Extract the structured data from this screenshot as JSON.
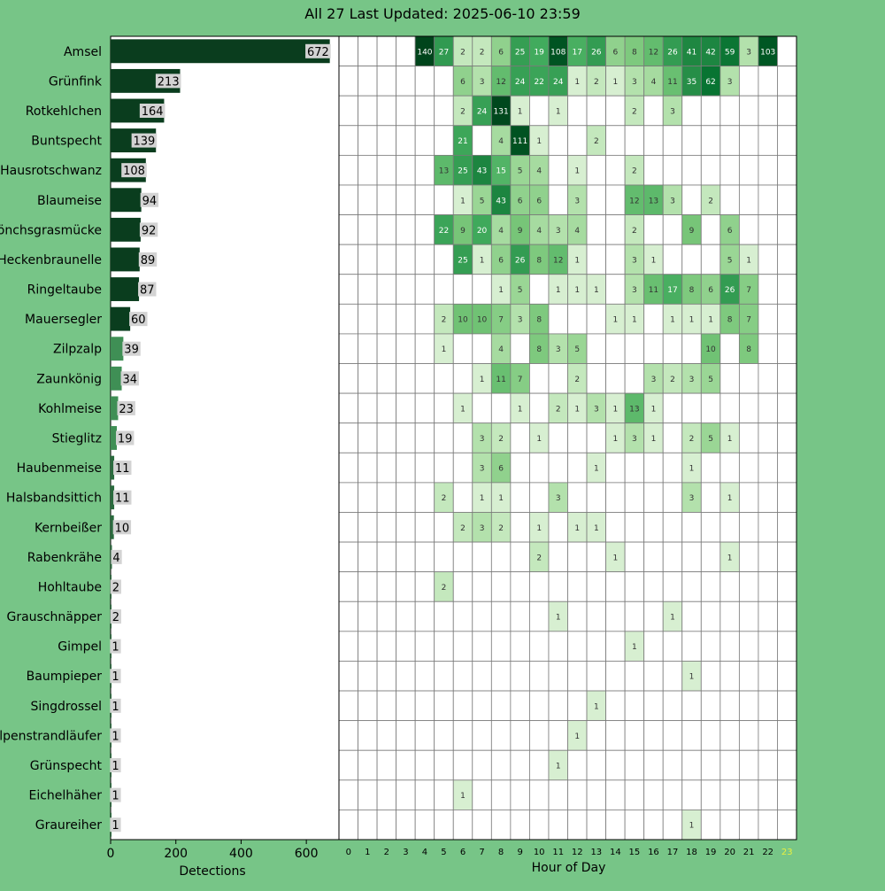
{
  "title": "All 27 Last Updated: 2025-06-10 23:59",
  "colors": {
    "background": "#77c587",
    "bar": "#0a3d1e",
    "grid": "#7a7a7a",
    "highlight_hour": "#e8f040",
    "label_box": "#d3d3d3"
  },
  "chart_data": [
    {
      "type": "bar",
      "orientation": "horizontal",
      "xlabel": "Detections",
      "xlim": [
        0,
        700
      ],
      "xticks": [
        0,
        200,
        400,
        600
      ],
      "categories": [
        "Amsel",
        "Grünfink",
        "Rotkehlchen",
        "Buntspecht",
        "Hausrotschwanz",
        "Blaumeise",
        "Mönchsgrasmücke",
        "Heckenbraunelle",
        "Ringeltaube",
        "Mauersegler",
        "Zilpzalp",
        "Zaunkönig",
        "Kohlmeise",
        "Stieglitz",
        "Haubenmeise",
        "Halsbandsittich",
        "Kernbeißer",
        "Rabenkrähe",
        "Hohltaube",
        "Grauschnäpper",
        "Gimpel",
        "Baumpieper",
        "Singdrossel",
        "Alpenstrandläufer",
        "Grünspecht",
        "Eichelhäher",
        "Graureiher"
      ],
      "values": [
        672,
        213,
        164,
        139,
        108,
        94,
        92,
        89,
        87,
        60,
        39,
        34,
        23,
        19,
        11,
        11,
        10,
        4,
        2,
        2,
        1,
        1,
        1,
        1,
        1,
        1,
        1
      ]
    },
    {
      "type": "heatmap",
      "xlabel": "Hour of Day",
      "hours": [
        "0",
        "1",
        "2",
        "3",
        "4",
        "5",
        "6",
        "7",
        "8",
        "9",
        "10",
        "11",
        "12",
        "13",
        "14",
        "15",
        "16",
        "17",
        "18",
        "19",
        "20",
        "21",
        "22",
        "23"
      ],
      "highlight_hour": "23",
      "rows": [
        "Amsel",
        "Grünfink",
        "Rotkehlchen",
        "Buntspecht",
        "Hausrotschwanz",
        "Blaumeise",
        "Mönchsgrasmücke",
        "Heckenbraunelle",
        "Ringeltaube",
        "Mauersegler",
        "Zilpzalp",
        "Zaunkönig",
        "Kohlmeise",
        "Stieglitz",
        "Haubenmeise",
        "Halsbandsittich",
        "Kernbeißer",
        "Rabenkrähe",
        "Hohltaube",
        "Grauschnäpper",
        "Gimpel",
        "Baumpieper",
        "Singdrossel",
        "Alpenstrandläufer",
        "Grünspecht",
        "Eichelhäher",
        "Graureiher"
      ],
      "values": [
        [
          0,
          0,
          0,
          0,
          140,
          27,
          2,
          2,
          6,
          25,
          19,
          108,
          17,
          26,
          6,
          8,
          12,
          26,
          41,
          42,
          59,
          3,
          103,
          0
        ],
        [
          0,
          0,
          0,
          0,
          0,
          0,
          6,
          3,
          12,
          24,
          22,
          24,
          1,
          2,
          1,
          3,
          4,
          11,
          35,
          62,
          3,
          0,
          0,
          0
        ],
        [
          0,
          0,
          0,
          0,
          0,
          0,
          2,
          24,
          131,
          1,
          0,
          1,
          0,
          0,
          0,
          2,
          0,
          3,
          0,
          0,
          0,
          0,
          0,
          0
        ],
        [
          0,
          0,
          0,
          0,
          0,
          0,
          21,
          0,
          4,
          111,
          1,
          0,
          0,
          2,
          0,
          0,
          0,
          0,
          0,
          0,
          0,
          0,
          0,
          0
        ],
        [
          0,
          0,
          0,
          0,
          0,
          13,
          25,
          43,
          15,
          5,
          4,
          0,
          1,
          0,
          0,
          2,
          0,
          0,
          0,
          0,
          0,
          0,
          0,
          0
        ],
        [
          0,
          0,
          0,
          0,
          0,
          0,
          1,
          5,
          43,
          6,
          6,
          0,
          3,
          0,
          0,
          12,
          13,
          3,
          0,
          2,
          0,
          0,
          0,
          0
        ],
        [
          0,
          0,
          0,
          0,
          0,
          22,
          9,
          20,
          4,
          9,
          4,
          3,
          4,
          0,
          0,
          2,
          0,
          0,
          9,
          0,
          6,
          0,
          0,
          0
        ],
        [
          0,
          0,
          0,
          0,
          0,
          0,
          25,
          1,
          6,
          26,
          8,
          12,
          1,
          0,
          0,
          3,
          1,
          0,
          0,
          0,
          5,
          1,
          0,
          0
        ],
        [
          0,
          0,
          0,
          0,
          0,
          0,
          0,
          0,
          1,
          5,
          0,
          1,
          1,
          1,
          0,
          3,
          11,
          17,
          8,
          6,
          26,
          7,
          0,
          0
        ],
        [
          0,
          0,
          0,
          0,
          0,
          2,
          10,
          10,
          7,
          3,
          8,
          0,
          0,
          0,
          1,
          1,
          0,
          1,
          1,
          1,
          8,
          7,
          0,
          0
        ],
        [
          0,
          0,
          0,
          0,
          0,
          1,
          0,
          0,
          4,
          0,
          8,
          3,
          5,
          0,
          0,
          0,
          0,
          0,
          0,
          10,
          0,
          8,
          0,
          0
        ],
        [
          0,
          0,
          0,
          0,
          0,
          0,
          0,
          1,
          11,
          7,
          0,
          0,
          2,
          0,
          0,
          0,
          3,
          2,
          3,
          5,
          0,
          0,
          0,
          0
        ],
        [
          0,
          0,
          0,
          0,
          0,
          0,
          1,
          0,
          0,
          1,
          0,
          2,
          1,
          3,
          1,
          13,
          1,
          0,
          0,
          0,
          0,
          0,
          0,
          0
        ],
        [
          0,
          0,
          0,
          0,
          0,
          0,
          0,
          3,
          2,
          0,
          1,
          0,
          0,
          0,
          1,
          3,
          1,
          0,
          2,
          5,
          1,
          0,
          0,
          0
        ],
        [
          0,
          0,
          0,
          0,
          0,
          0,
          0,
          3,
          6,
          0,
          0,
          0,
          0,
          1,
          0,
          0,
          0,
          0,
          1,
          0,
          0,
          0,
          0,
          0
        ],
        [
          0,
          0,
          0,
          0,
          0,
          2,
          0,
          1,
          1,
          0,
          0,
          3,
          0,
          0,
          0,
          0,
          0,
          0,
          3,
          0,
          1,
          0,
          0,
          0
        ],
        [
          0,
          0,
          0,
          0,
          0,
          0,
          2,
          3,
          2,
          0,
          1,
          0,
          1,
          1,
          0,
          0,
          0,
          0,
          0,
          0,
          0,
          0,
          0,
          0
        ],
        [
          0,
          0,
          0,
          0,
          0,
          0,
          0,
          0,
          0,
          0,
          2,
          0,
          0,
          0,
          1,
          0,
          0,
          0,
          0,
          0,
          1,
          0,
          0,
          0
        ],
        [
          0,
          0,
          0,
          0,
          0,
          2,
          0,
          0,
          0,
          0,
          0,
          0,
          0,
          0,
          0,
          0,
          0,
          0,
          0,
          0,
          0,
          0,
          0,
          0
        ],
        [
          0,
          0,
          0,
          0,
          0,
          0,
          0,
          0,
          0,
          0,
          0,
          1,
          0,
          0,
          0,
          0,
          0,
          1,
          0,
          0,
          0,
          0,
          0,
          0
        ],
        [
          0,
          0,
          0,
          0,
          0,
          0,
          0,
          0,
          0,
          0,
          0,
          0,
          0,
          0,
          0,
          1,
          0,
          0,
          0,
          0,
          0,
          0,
          0,
          0
        ],
        [
          0,
          0,
          0,
          0,
          0,
          0,
          0,
          0,
          0,
          0,
          0,
          0,
          0,
          0,
          0,
          0,
          0,
          0,
          1,
          0,
          0,
          0,
          0,
          0
        ],
        [
          0,
          0,
          0,
          0,
          0,
          0,
          0,
          0,
          0,
          0,
          0,
          0,
          0,
          1,
          0,
          0,
          0,
          0,
          0,
          0,
          0,
          0,
          0,
          0
        ],
        [
          0,
          0,
          0,
          0,
          0,
          0,
          0,
          0,
          0,
          0,
          0,
          0,
          1,
          0,
          0,
          0,
          0,
          0,
          0,
          0,
          0,
          0,
          0,
          0
        ],
        [
          0,
          0,
          0,
          0,
          0,
          0,
          0,
          0,
          0,
          0,
          0,
          1,
          0,
          0,
          0,
          0,
          0,
          0,
          0,
          0,
          0,
          0,
          0,
          0
        ],
        [
          0,
          0,
          0,
          0,
          0,
          0,
          1,
          0,
          0,
          0,
          0,
          0,
          0,
          0,
          0,
          0,
          0,
          0,
          0,
          0,
          0,
          0,
          0,
          0
        ],
        [
          0,
          0,
          0,
          0,
          0,
          0,
          0,
          0,
          0,
          0,
          0,
          0,
          0,
          0,
          0,
          0,
          0,
          0,
          1,
          0,
          0,
          0,
          0,
          0
        ]
      ]
    }
  ]
}
